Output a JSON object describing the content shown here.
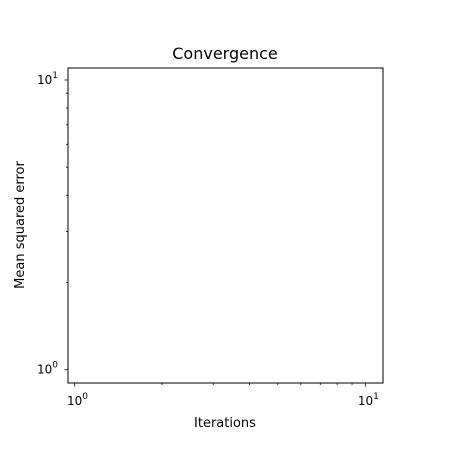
{
  "chart_data": {
    "type": "line",
    "title": "Convergence",
    "xlabel": "Iterations",
    "ylabel": "Mean squared error",
    "xscale": "log",
    "yscale": "log",
    "xlim": [
      0.95,
      11.5
    ],
    "ylim": [
      0.9,
      11.0
    ],
    "x_major_ticks": [
      {
        "value": 1,
        "base": "10",
        "exp": "0"
      },
      {
        "value": 10,
        "base": "10",
        "exp": "1"
      }
    ],
    "y_major_ticks": [
      {
        "value": 1,
        "base": "10",
        "exp": "0"
      },
      {
        "value": 10,
        "base": "10",
        "exp": "1"
      }
    ],
    "x_minor_ticks": [
      2,
      3,
      4,
      5,
      6,
      7,
      8,
      9
    ],
    "y_minor_ticks": [
      2,
      3,
      4,
      5,
      6,
      7,
      8,
      9
    ],
    "series": [],
    "grid": false,
    "legend": "none"
  }
}
